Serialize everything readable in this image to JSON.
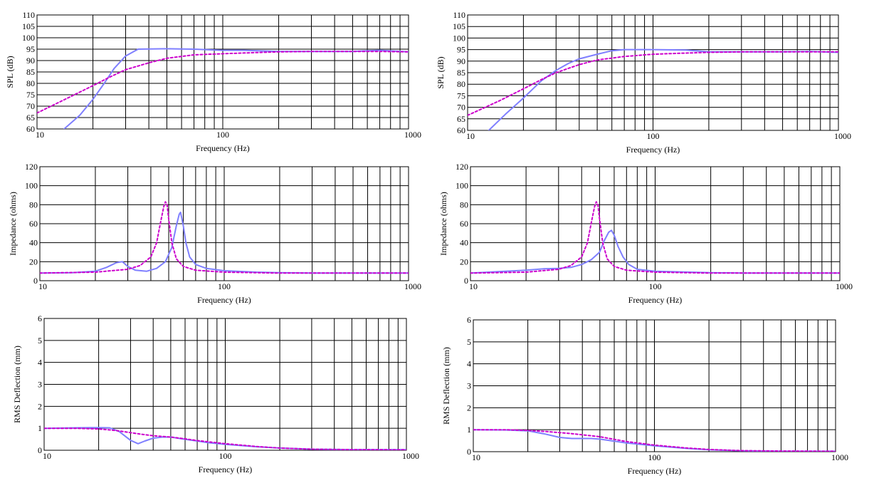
{
  "colors": {
    "solid": "#7f7fff",
    "dotted": "#cc00cc",
    "grid": "#000000",
    "background": "#ffffff"
  },
  "chart_data": [
    {
      "type": "line",
      "xlabel": "Frequency (Hz)",
      "ylabel": "SPL (dB)",
      "xscale": "log",
      "xlim": [
        10,
        1000
      ],
      "ylim": [
        60,
        110
      ],
      "xticks": [
        10,
        100,
        1000
      ],
      "yticks": [
        60,
        65,
        70,
        75,
        80,
        85,
        90,
        95,
        100,
        105,
        110
      ],
      "grid": true,
      "series": [
        {
          "style": "solid",
          "x": [
            14,
            17,
            20,
            23,
            26,
            30,
            35,
            50,
            70,
            100,
            130,
            200,
            300,
            500,
            700,
            1000
          ],
          "y": [
            60,
            66,
            73,
            80,
            86.5,
            92,
            95,
            95.2,
            95,
            94.5,
            94.5,
            94,
            94,
            94,
            94.5,
            93.8
          ]
        },
        {
          "style": "dotted",
          "x": [
            10,
            15,
            20,
            25,
            30,
            40,
            50,
            70,
            100,
            150,
            200,
            300,
            500,
            700,
            1000
          ],
          "y": [
            67,
            74,
            79,
            83,
            86,
            89,
            91,
            92.5,
            93,
            93.5,
            93.8,
            94,
            94,
            94,
            93.8
          ]
        }
      ]
    },
    {
      "type": "line",
      "xlabel": "Frequency (Hz)",
      "ylabel": "SPL (dB)",
      "xscale": "log",
      "xlim": [
        10,
        1000
      ],
      "ylim": [
        60,
        110
      ],
      "xticks": [
        10,
        100,
        1000
      ],
      "yticks": [
        60,
        65,
        70,
        75,
        80,
        85,
        90,
        95,
        100,
        105,
        110
      ],
      "grid": true,
      "series": [
        {
          "style": "solid",
          "x": [
            13,
            16,
            20,
            25,
            30,
            35,
            40,
            50,
            60,
            70,
            100,
            150,
            200,
            300,
            500,
            700,
            1000
          ],
          "y": [
            60,
            67,
            74,
            81.5,
            86,
            89,
            91,
            93,
            94.5,
            95,
            95,
            94.8,
            94,
            94,
            94,
            94.2,
            93.8
          ]
        },
        {
          "style": "dotted",
          "x": [
            10,
            15,
            20,
            25,
            30,
            40,
            50,
            70,
            100,
            150,
            200,
            300,
            500,
            1000
          ],
          "y": [
            66.5,
            73,
            78,
            82,
            85,
            88.5,
            90.5,
            92,
            93,
            93.5,
            93.8,
            94,
            94,
            94
          ]
        }
      ]
    },
    {
      "type": "line",
      "xlabel": "Frequency (Hz)",
      "ylabel": "Impedance (ohms)",
      "xscale": "log",
      "xlim": [
        10,
        1000
      ],
      "ylim": [
        0,
        120
      ],
      "xticks": [
        10,
        100,
        1000
      ],
      "yticks": [
        0,
        20,
        40,
        60,
        80,
        100,
        120
      ],
      "grid": true,
      "series": [
        {
          "style": "solid",
          "x": [
            10,
            15,
            20,
            23,
            26,
            28,
            30,
            33,
            38,
            43,
            48,
            52,
            55,
            57,
            58,
            60,
            62,
            65,
            70,
            80,
            100,
            150,
            200,
            300,
            500,
            1000
          ],
          "y": [
            8,
            8.5,
            10,
            14,
            19,
            20,
            15,
            11,
            10,
            13,
            20,
            35,
            58,
            70,
            72,
            58,
            40,
            25,
            17,
            13,
            10.5,
            9,
            8.5,
            8,
            8,
            8
          ]
        },
        {
          "style": "dotted",
          "x": [
            10,
            20,
            30,
            35,
            40,
            43,
            45,
            47,
            48,
            49,
            50,
            52,
            55,
            60,
            70,
            100,
            200,
            1000
          ],
          "y": [
            8,
            9,
            12,
            16,
            25,
            40,
            60,
            78,
            83,
            80,
            65,
            40,
            23,
            15,
            11,
            9,
            8,
            8
          ]
        }
      ]
    },
    {
      "type": "line",
      "xlabel": "Frequency (Hz)",
      "ylabel": "Impedance (ohms)",
      "xscale": "log",
      "xlim": [
        10,
        1000
      ],
      "ylim": [
        0,
        120
      ],
      "xticks": [
        10,
        100,
        1000
      ],
      "yticks": [
        0,
        20,
        40,
        60,
        80,
        100,
        120
      ],
      "grid": true,
      "series": [
        {
          "style": "solid",
          "x": [
            10,
            20,
            25,
            30,
            35,
            40,
            45,
            50,
            53,
            56,
            58,
            60,
            63,
            67,
            72,
            80,
            100,
            200,
            300,
            500,
            1000
          ],
          "y": [
            8,
            11,
            12.5,
            13,
            14,
            17,
            22,
            30,
            42,
            51,
            53,
            48,
            36,
            25,
            17,
            12,
            10,
            8.5,
            8,
            8,
            8
          ]
        },
        {
          "style": "dotted",
          "x": [
            10,
            20,
            30,
            35,
            40,
            43,
            45,
            47,
            48,
            49,
            50,
            52,
            55,
            60,
            70,
            100,
            200,
            1000
          ],
          "y": [
            8,
            9,
            12,
            16,
            25,
            40,
            60,
            78,
            83,
            80,
            65,
            40,
            23,
            15,
            11,
            9,
            8,
            8
          ]
        }
      ]
    },
    {
      "type": "line",
      "xlabel": "Frequency (Hz)",
      "ylabel": "RMS Deflection (mm)",
      "xscale": "log",
      "xlim": [
        10,
        1000
      ],
      "ylim": [
        0,
        6
      ],
      "xticks": [
        10,
        100,
        1000
      ],
      "yticks": [
        0,
        1,
        2,
        3,
        4,
        5,
        6
      ],
      "grid": true,
      "series": [
        {
          "style": "solid",
          "x": [
            10,
            15,
            20,
            23,
            26,
            30,
            33,
            36,
            40,
            45,
            50,
            60,
            70,
            80,
            100,
            150,
            200,
            300,
            500,
            700,
            1000
          ],
          "y": [
            1,
            1.02,
            1.03,
            1.02,
            0.85,
            0.45,
            0.3,
            0.42,
            0.55,
            0.6,
            0.6,
            0.5,
            0.42,
            0.35,
            0.27,
            0.16,
            0.1,
            0.05,
            0.03,
            0.03,
            0.03
          ]
        },
        {
          "style": "dotted",
          "x": [
            10,
            15,
            20,
            25,
            30,
            35,
            40,
            50,
            60,
            70,
            100,
            150,
            200,
            300,
            500,
            1000
          ],
          "y": [
            1,
            1,
            0.97,
            0.9,
            0.8,
            0.72,
            0.66,
            0.6,
            0.52,
            0.44,
            0.3,
            0.17,
            0.1,
            0.05,
            0.03,
            0.02
          ]
        }
      ]
    },
    {
      "type": "line",
      "xlabel": "Frequency (Hz)",
      "ylabel": "RMS Deflection (mm)",
      "xscale": "log",
      "xlim": [
        10,
        1000
      ],
      "ylim": [
        0,
        6
      ],
      "xticks": [
        10,
        100,
        1000
      ],
      "yticks": [
        0,
        1,
        2,
        3,
        4,
        5,
        6
      ],
      "grid": true,
      "series": [
        {
          "style": "solid",
          "x": [
            10,
            15,
            20,
            25,
            30,
            35,
            40,
            45,
            50,
            60,
            70,
            100,
            150,
            200,
            300,
            500,
            1000
          ],
          "y": [
            1,
            0.99,
            0.95,
            0.8,
            0.65,
            0.6,
            0.6,
            0.6,
            0.57,
            0.48,
            0.4,
            0.27,
            0.15,
            0.09,
            0.04,
            0.02,
            0.02
          ]
        },
        {
          "style": "dotted",
          "x": [
            10,
            15,
            20,
            25,
            30,
            35,
            40,
            50,
            60,
            70,
            100,
            150,
            200,
            300,
            500,
            1000
          ],
          "y": [
            1,
            1,
            0.97,
            0.92,
            0.87,
            0.82,
            0.77,
            0.68,
            0.56,
            0.46,
            0.3,
            0.17,
            0.1,
            0.05,
            0.03,
            0.02
          ]
        }
      ]
    }
  ]
}
